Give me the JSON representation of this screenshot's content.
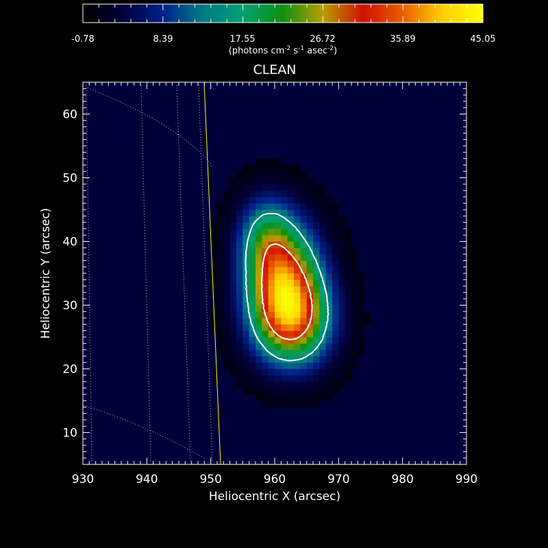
{
  "colorbar": {
    "ticks": [
      "-0.78",
      "8.39",
      "17.55",
      "26.72",
      "35.89",
      "45.05"
    ],
    "range": [
      -0.78,
      45.05
    ],
    "unit_prefix": "(photons cm",
    "unit_sup1": "-2",
    "unit_mid1": " s",
    "unit_sup2": "-1",
    "unit_mid2": " asec",
    "unit_sup3": "-2",
    "unit_suffix": ")",
    "colors": [
      "#000000",
      "#00003a",
      "#00208a",
      "#007a86",
      "#00a070",
      "#109010",
      "#b8a000",
      "#d01000",
      "#e86000",
      "#ffd000",
      "#ffff00"
    ]
  },
  "chart_data": {
    "type": "heatmap",
    "title": "CLEAN",
    "xlabel": "Heliocentric X (arcsec)",
    "ylabel": "Heliocentric Y (arcsec)",
    "xlim": [
      930,
      990
    ],
    "ylim": [
      5,
      65
    ],
    "x_ticks": [
      930,
      940,
      950,
      960,
      970,
      980,
      990
    ],
    "y_ticks": [
      10,
      20,
      30,
      40,
      50,
      60
    ],
    "x_tick_labels": [
      "930",
      "940",
      "950",
      "960",
      "970",
      "980",
      "990"
    ],
    "y_tick_labels": [
      "10",
      "20",
      "30",
      "40",
      "50",
      "60"
    ],
    "grid": "heliographic grid lines (dotted)",
    "source": {
      "peak_value": 45.05,
      "components": [
        {
          "x": 961.3,
          "y": 34.5,
          "sigma_x": 4.0,
          "sigma_y": 6.0,
          "amplitude": 30
        },
        {
          "x": 962.8,
          "y": 27.5,
          "sigma_x": 4.2,
          "sigma_y": 5.0,
          "amplitude": 28
        },
        {
          "x": 958.5,
          "y": 41.0,
          "sigma_x": 3.0,
          "sigma_y": 4.5,
          "amplitude": 12
        }
      ]
    },
    "contour_levels": [
      15,
      30
    ],
    "limb_color": "#ffff00",
    "colors": {
      "contour": "#ffffff",
      "grid": "#ffffff",
      "axes": "#ffffff"
    }
  }
}
